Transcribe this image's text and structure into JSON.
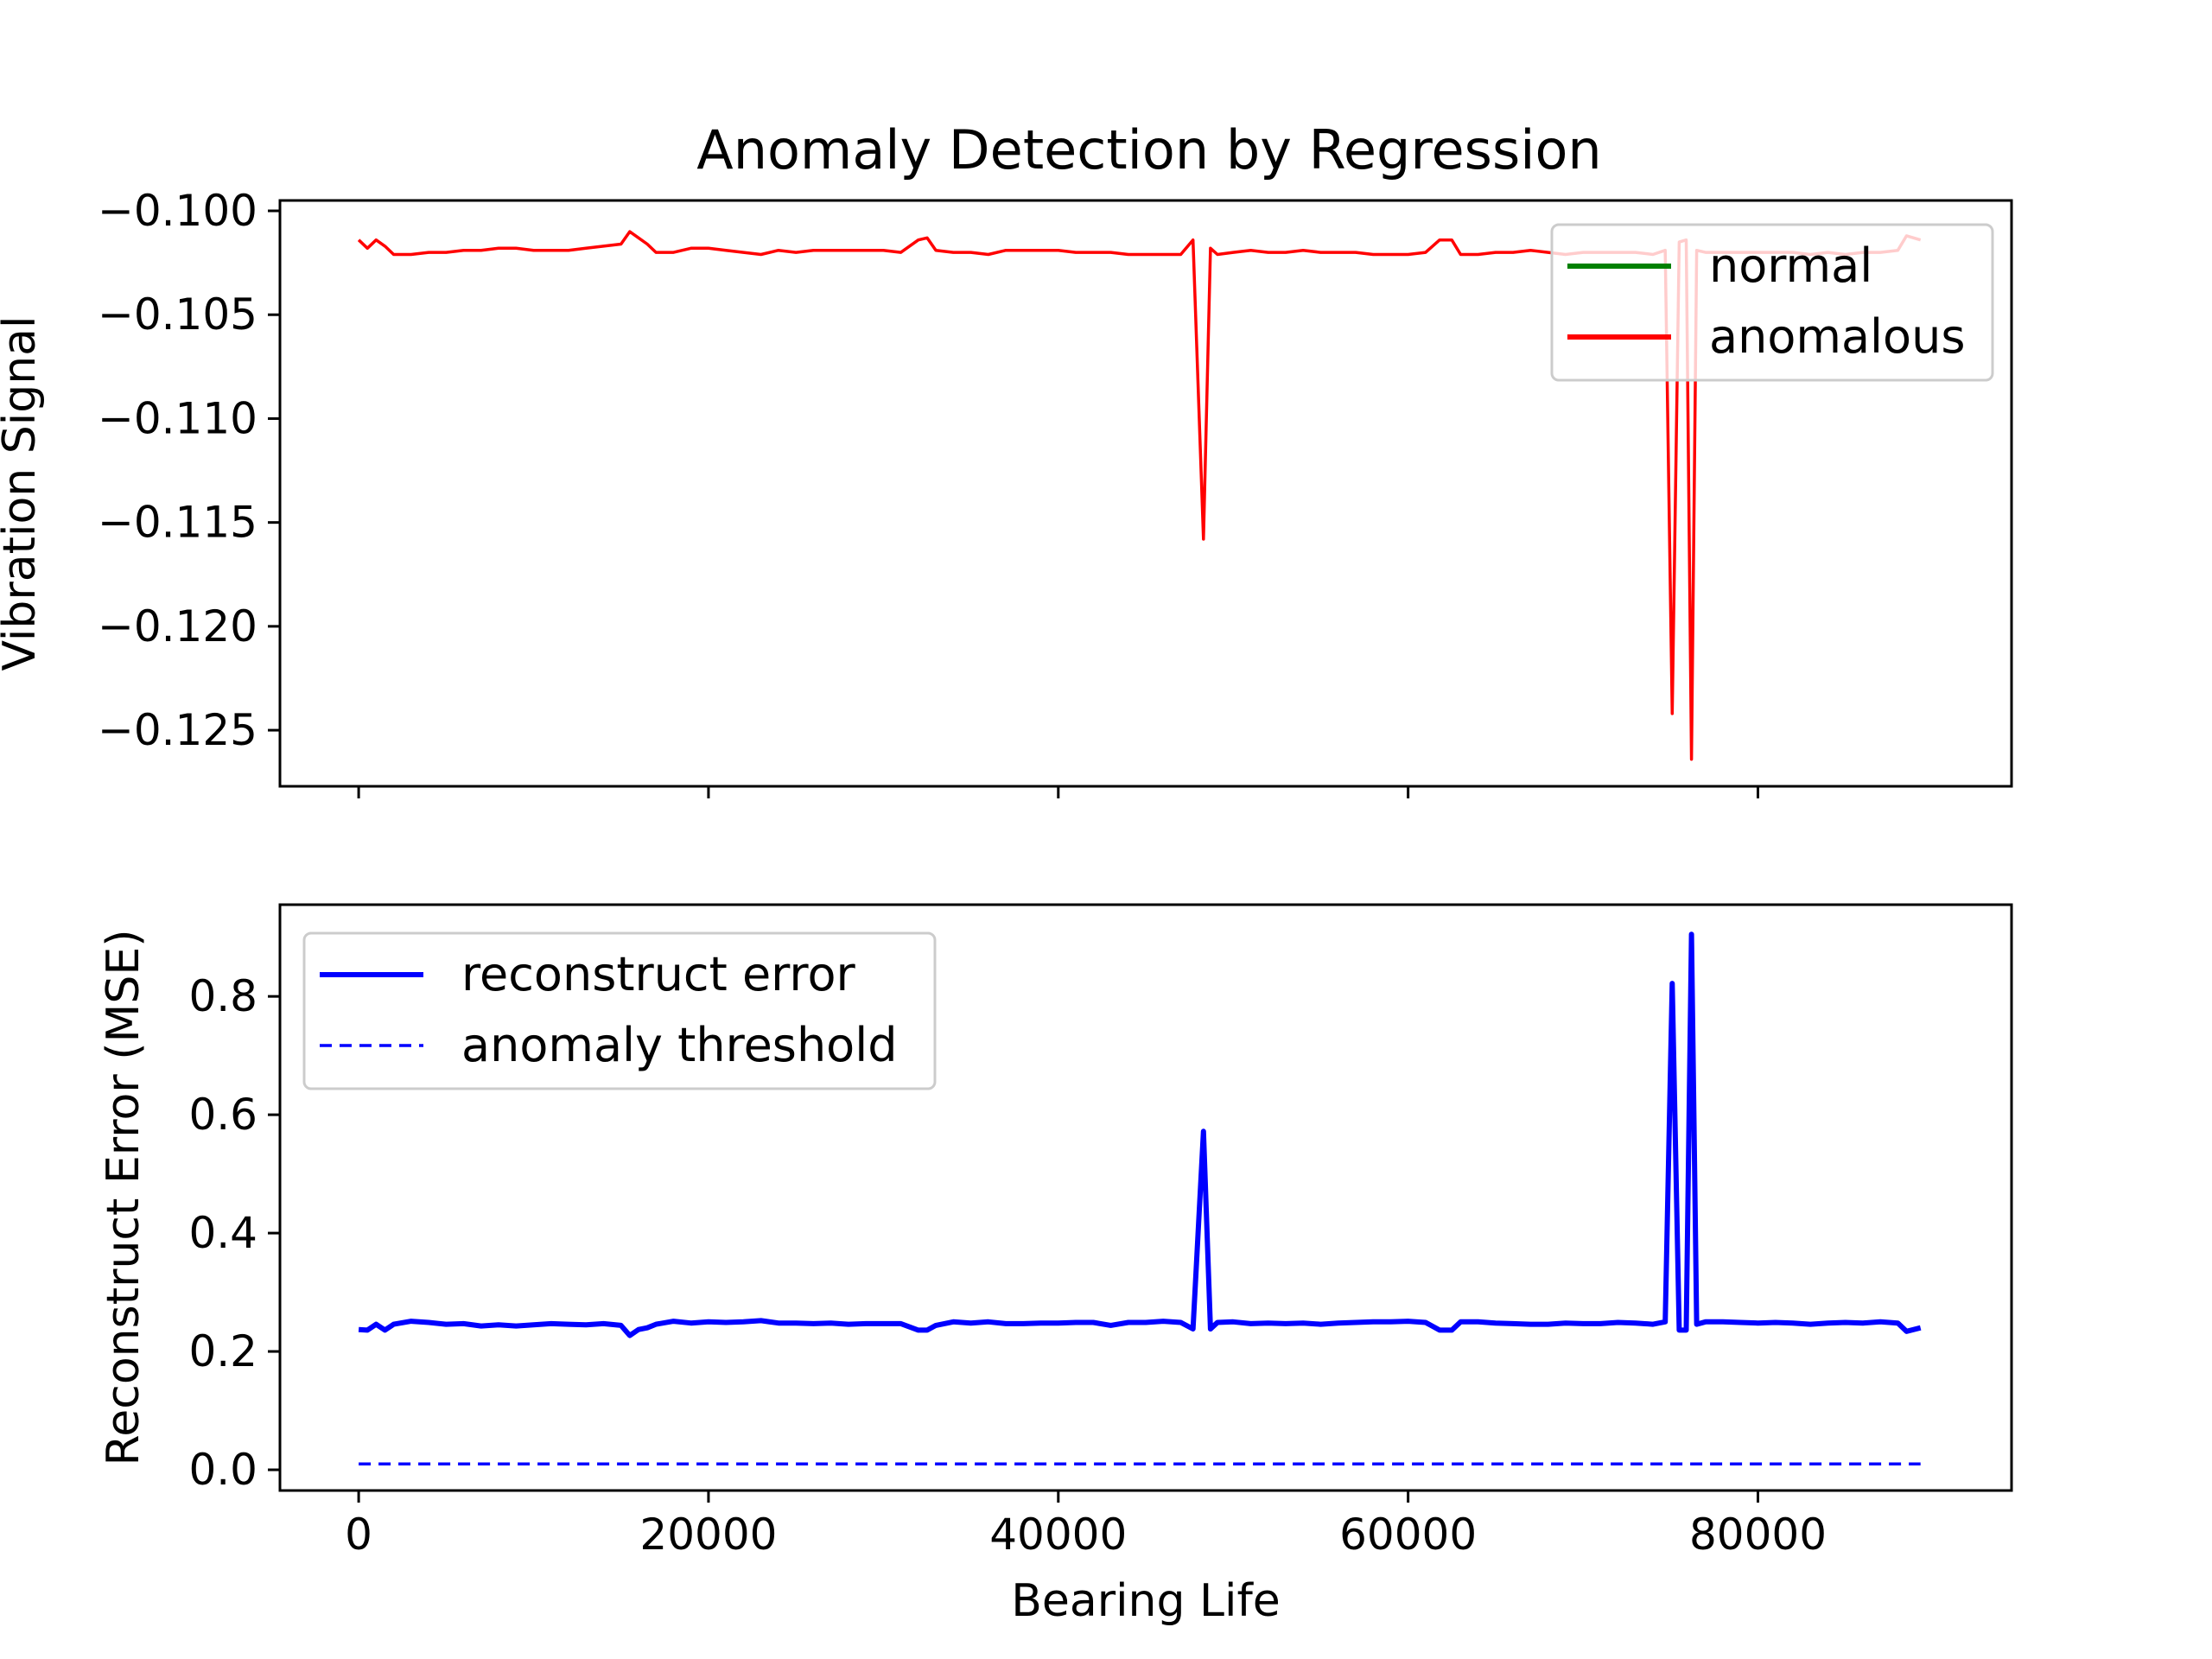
{
  "chart_data": [
    {
      "type": "line",
      "title": "Anomaly Detection by Regression",
      "xlabel": "",
      "ylabel": "Vibration Signal",
      "xlim": [
        -4500,
        94500
      ],
      "ylim": [
        -0.1277,
        -0.0995
      ],
      "xticks": [
        0,
        20000,
        40000,
        60000,
        80000
      ],
      "yticks": [
        -0.1,
        -0.105,
        -0.11,
        -0.115,
        -0.12,
        -0.125
      ],
      "ytick_labels": [
        "−0.100",
        "−0.105",
        "−0.110",
        "−0.115",
        "−0.120",
        "−0.125"
      ],
      "legend_position": "top-right",
      "series": [
        {
          "name": "normal",
          "color": "#008000",
          "style": "solid",
          "x": [],
          "y": []
        },
        {
          "name": "anomalous",
          "color": "#ff0000",
          "style": "solid",
          "x": [
            0,
            500,
            1000,
            1500,
            2000,
            3000,
            4000,
            5000,
            6000,
            7000,
            8000,
            9000,
            10000,
            11000,
            12000,
            13000,
            14000,
            15000,
            15500,
            16000,
            16500,
            17000,
            18000,
            19000,
            20000,
            21000,
            22000,
            23000,
            24000,
            25000,
            26000,
            27000,
            28000,
            29000,
            30000,
            31000,
            32000,
            32500,
            33000,
            34000,
            35000,
            36000,
            37000,
            38000,
            39000,
            40000,
            41000,
            42000,
            43000,
            44000,
            45000,
            46000,
            47000,
            47700,
            48300,
            48700,
            49100,
            50000,
            51000,
            52000,
            53000,
            54000,
            55000,
            56000,
            57000,
            58000,
            59000,
            60000,
            61000,
            61800,
            62500,
            63000,
            64000,
            65000,
            66000,
            67000,
            68000,
            69000,
            70000,
            71000,
            72000,
            73000,
            74000,
            74700,
            75100,
            75500,
            75900,
            76200,
            76500,
            77000,
            78000,
            79000,
            80000,
            81000,
            82000,
            83000,
            84000,
            85000,
            86000,
            87000,
            88000,
            88500,
            89300
          ],
          "y": [
            -0.1014,
            -0.1018,
            -0.1014,
            -0.1017,
            -0.1021,
            -0.1021,
            -0.102,
            -0.102,
            -0.1019,
            -0.1019,
            -0.1018,
            -0.1018,
            -0.1019,
            -0.1019,
            -0.1019,
            -0.1018,
            -0.1017,
            -0.1016,
            -0.101,
            -0.1013,
            -0.1016,
            -0.102,
            -0.102,
            -0.1018,
            -0.1018,
            -0.1019,
            -0.102,
            -0.1021,
            -0.1019,
            -0.102,
            -0.1019,
            -0.1019,
            -0.1019,
            -0.1019,
            -0.1019,
            -0.102,
            -0.1014,
            -0.1013,
            -0.1019,
            -0.102,
            -0.102,
            -0.1021,
            -0.1019,
            -0.1019,
            -0.1019,
            -0.1019,
            -0.102,
            -0.102,
            -0.102,
            -0.1021,
            -0.1021,
            -0.1021,
            -0.1021,
            -0.1014,
            -0.1158,
            -0.1018,
            -0.1021,
            -0.102,
            -0.1019,
            -0.102,
            -0.102,
            -0.1019,
            -0.102,
            -0.102,
            -0.102,
            -0.1021,
            -0.1021,
            -0.1021,
            -0.102,
            -0.1014,
            -0.1014,
            -0.1021,
            -0.1021,
            -0.102,
            -0.102,
            -0.1019,
            -0.102,
            -0.1021,
            -0.102,
            -0.102,
            -0.102,
            -0.102,
            -0.1021,
            -0.1019,
            -0.1242,
            -0.1015,
            -0.1014,
            -0.1264,
            -0.1019,
            -0.102,
            -0.102,
            -0.102,
            -0.102,
            -0.102,
            -0.102,
            -0.1021,
            -0.102,
            -0.1021,
            -0.102,
            -0.102,
            -0.1019,
            -0.1012,
            -0.1014
          ]
        }
      ]
    },
    {
      "type": "line",
      "title": "",
      "xlabel": "Bearing Life",
      "ylabel": "Reconstruct Error (MSE)",
      "xlim": [
        -4500,
        94500
      ],
      "ylim": [
        -0.035,
        0.955
      ],
      "xticks": [
        0,
        20000,
        40000,
        60000,
        80000
      ],
      "yticks": [
        0.0,
        0.2,
        0.4,
        0.6,
        0.8
      ],
      "ytick_labels": [
        "0.0",
        "0.2",
        "0.4",
        "0.6",
        "0.8"
      ],
      "legend_position": "top-left",
      "series": [
        {
          "name": "reconstruct error",
          "color": "#0000ff",
          "style": "solid",
          "x": [
            0,
            500,
            1000,
            1500,
            2000,
            3000,
            4000,
            5000,
            6000,
            7000,
            8000,
            9000,
            10000,
            11000,
            12000,
            13000,
            14000,
            15000,
            15500,
            16000,
            16500,
            17000,
            18000,
            19000,
            20000,
            21000,
            22000,
            23000,
            24000,
            25000,
            26000,
            27000,
            28000,
            29000,
            30000,
            31000,
            32000,
            32500,
            33000,
            34000,
            35000,
            36000,
            37000,
            38000,
            39000,
            40000,
            41000,
            42000,
            43000,
            44000,
            45000,
            46000,
            47000,
            47700,
            48300,
            48700,
            49100,
            50000,
            51000,
            52000,
            53000,
            54000,
            55000,
            56000,
            57000,
            58000,
            59000,
            60000,
            61000,
            61800,
            62500,
            63000,
            64000,
            65000,
            66000,
            67000,
            68000,
            69000,
            70000,
            71000,
            72000,
            73000,
            74000,
            74700,
            75100,
            75500,
            75900,
            76200,
            76500,
            77000,
            78000,
            79000,
            80000,
            81000,
            82000,
            83000,
            84000,
            85000,
            86000,
            87000,
            88000,
            88500,
            89300
          ],
          "y": [
            0.237,
            0.236,
            0.246,
            0.236,
            0.246,
            0.251,
            0.249,
            0.246,
            0.247,
            0.243,
            0.245,
            0.243,
            0.245,
            0.247,
            0.246,
            0.245,
            0.247,
            0.244,
            0.227,
            0.237,
            0.24,
            0.246,
            0.251,
            0.248,
            0.25,
            0.249,
            0.25,
            0.252,
            0.248,
            0.248,
            0.247,
            0.248,
            0.246,
            0.247,
            0.247,
            0.247,
            0.236,
            0.236,
            0.244,
            0.25,
            0.248,
            0.25,
            0.247,
            0.247,
            0.248,
            0.248,
            0.249,
            0.249,
            0.244,
            0.249,
            0.249,
            0.251,
            0.249,
            0.238,
            0.572,
            0.238,
            0.249,
            0.25,
            0.247,
            0.248,
            0.247,
            0.248,
            0.246,
            0.248,
            0.249,
            0.25,
            0.25,
            0.251,
            0.249,
            0.236,
            0.236,
            0.25,
            0.25,
            0.248,
            0.247,
            0.246,
            0.246,
            0.248,
            0.247,
            0.247,
            0.249,
            0.248,
            0.246,
            0.25,
            0.822,
            0.236,
            0.236,
            0.905,
            0.246,
            0.25,
            0.25,
            0.249,
            0.248,
            0.249,
            0.248,
            0.246,
            0.248,
            0.249,
            0.248,
            0.25,
            0.248,
            0.234,
            0.24
          ]
        },
        {
          "name": "anomaly threshold",
          "color": "#0000ff",
          "style": "dashed",
          "x": [
            0,
            89300
          ],
          "y": [
            0.01,
            0.01
          ]
        }
      ]
    }
  ]
}
